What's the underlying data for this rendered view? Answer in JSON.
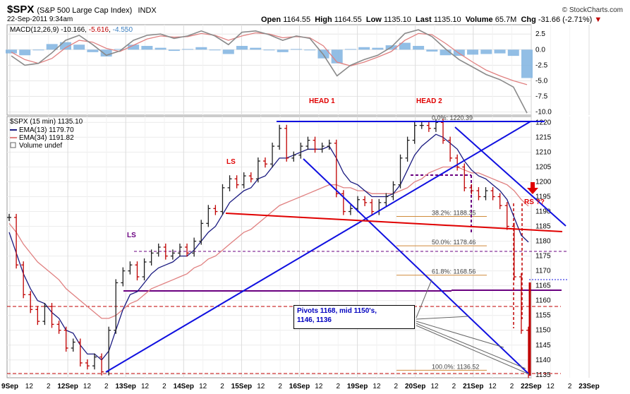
{
  "header": {
    "symbol": "$SPX",
    "name": "(S&P 500 Large Cap Index)",
    "exchange": "INDX",
    "timestamp": "22-Sep-2011 9:34am",
    "credit": "© StockCharts.com",
    "open_label": "Open",
    "open": "1164.55",
    "high_label": "High",
    "high": "1164.55",
    "low_label": "Low",
    "low": "1135.10",
    "last_label": "Last",
    "last": "1135.10",
    "volume_label": "Volume",
    "volume": "65.7M",
    "chg_label": "Chg",
    "chg": "-31.66 (-2.71%)",
    "chg_arrow": "▼"
  },
  "macd_legend": {
    "label": "MACD(12,26,9)",
    "v1": "-10.166",
    "v2": "-5.616",
    "v3": "-4.550"
  },
  "price_legend": {
    "series": "$SPX (15 min) 1135.10",
    "ema13": "EMA(13) 1179.70",
    "ema34": "EMA(34) 1191.82",
    "volume": "Volume undef"
  },
  "annotations": {
    "head1": "HEAD 1",
    "head2": "HEAD 2",
    "ls_red": "LS",
    "ls_purple": "LS",
    "rs": "RS ??",
    "pivots_line1": "Pivots 1168, mid 1150's,",
    "pivots_line2": "1146, 1136"
  },
  "fib_labels": [
    "0.0%: 1220.39",
    "38.2%: 1188.35",
    "50.0%: 1178.46",
    "61.8%: 1168.56",
    "100.0%: 1136.52"
  ],
  "colors": {
    "price_up": "#202020",
    "price_down": "#c00000",
    "ema13": "#1a1a80",
    "ema34": "#e08080",
    "trend_blue": "#1010e0",
    "neckline_red": "#e00000",
    "support_purple": "#6a0080",
    "macd_hist": "#7fb3e0"
  },
  "chart_data": [
    {
      "type": "line",
      "panel": "MACD",
      "y_ticks": [
        2.5,
        0.0,
        -2.5,
        -5.0,
        -7.5,
        -10.0
      ],
      "ylim": [
        -10.5,
        4
      ],
      "series": [
        {
          "name": "MACD(12,26,9)",
          "values": [
            -1,
            -2.5,
            -2.2,
            -0.5,
            1.5,
            2.3,
            0.8,
            -0.9,
            -0.2,
            1.5,
            2.3,
            2.5,
            1.8,
            2.2,
            3,
            2.2,
            0.8,
            2.8,
            3,
            2.4,
            1.5,
            2.2,
            1.8,
            -0.8,
            -4.2,
            -2.5,
            -1.6,
            -0.9,
            0.4,
            2.6,
            3.2,
            2.1,
            0.1,
            -1.6,
            -2.8,
            -4.0,
            -4.8,
            -6,
            -10.17
          ]
        },
        {
          "name": "Signal",
          "values": [
            -0.4,
            -1.6,
            -2.2,
            -1.4,
            0.3,
            1.5,
            1.2,
            0.2,
            -0.3,
            0.7,
            1.7,
            2.2,
            2,
            2.1,
            2.6,
            2.3,
            1.5,
            2.2,
            2.7,
            2.5,
            1.9,
            2.1,
            1.9,
            0.6,
            -2.0,
            -2.6,
            -2.0,
            -1.2,
            -0.3,
            1.5,
            2.6,
            2.4,
            1.0,
            -0.6,
            -2.0,
            -3.3,
            -4.2,
            -5.0,
            -5.62
          ]
        },
        {
          "name": "Histogram",
          "values": [
            -0.6,
            -0.9,
            0,
            0.9,
            1.2,
            0.8,
            -0.4,
            -1.1,
            0.1,
            0.8,
            0.6,
            0.3,
            -0.2,
            0.1,
            0.4,
            -0.1,
            -0.7,
            0.6,
            0.3,
            -0.1,
            -0.4,
            0.1,
            -0.1,
            -1.4,
            -2.2,
            0.1,
            0.4,
            0.3,
            0.7,
            1.1,
            0.6,
            -0.3,
            -0.9,
            -1.0,
            -0.8,
            -0.7,
            -0.6,
            -1.0,
            -4.55
          ]
        }
      ]
    },
    {
      "type": "line",
      "panel": "price",
      "y_ticks": [
        1135,
        1140,
        1145,
        1150,
        1155,
        1160,
        1165,
        1170,
        1175,
        1180,
        1185,
        1190,
        1195,
        1200,
        1205,
        1210,
        1215,
        1220
      ],
      "ylim": [
        1134,
        1222
      ],
      "x_labels": [
        "9Sep",
        "12",
        "2",
        "12Sep",
        "12",
        "2",
        "13Sep",
        "12",
        "2",
        "14Sep",
        "12",
        "2",
        "15Sep",
        "12",
        "2",
        "16Sep",
        "12",
        "2",
        "19Sep",
        "12",
        "2",
        "20Sep",
        "12",
        "2",
        "21Sep",
        "12",
        "2",
        "22Sep",
        "12",
        "2",
        "23Sep"
      ],
      "series": [
        {
          "name": "$SPX (15 min)",
          "values": [
            1188,
            1172,
            1162,
            1157,
            1153,
            1158,
            1152,
            1150,
            1144,
            1146,
            1139,
            1138,
            1141,
            1136,
            1150,
            1166,
            1170,
            1172,
            1168,
            1173,
            1176,
            1178,
            1175,
            1176,
            1178,
            1176,
            1180,
            1186,
            1191,
            1190,
            1198,
            1201,
            1199,
            1202,
            1201,
            1207,
            1206,
            1212,
            1218,
            1208,
            1209,
            1212,
            1214,
            1211,
            1212,
            1213,
            1196,
            1190,
            1191,
            1194,
            1193,
            1190,
            1193,
            1195,
            1199,
            1208,
            1214,
            1219,
            1219,
            1218,
            1220,
            1214,
            1208,
            1205,
            1198,
            1197,
            1195,
            1197,
            1195,
            1192,
            1185,
            1168,
            1150,
            1135.1
          ]
        },
        {
          "name": "EMA(13)",
          "values": [
            1183,
            1176,
            1169,
            1164,
            1160,
            1159,
            1156,
            1154,
            1150,
            1149,
            1145,
            1142,
            1142,
            1140,
            1143,
            1150,
            1157,
            1162,
            1163,
            1166,
            1169,
            1171,
            1172,
            1173,
            1175,
            1175,
            1177,
            1180,
            1183,
            1185,
            1189,
            1193,
            1195,
            1197,
            1198,
            1201,
            1202,
            1205,
            1208,
            1208,
            1209,
            1210,
            1211,
            1211,
            1211,
            1212,
            1208,
            1203,
            1200,
            1199,
            1197,
            1195,
            1195,
            1195,
            1196,
            1199,
            1204,
            1209,
            1212,
            1214,
            1216,
            1215,
            1213,
            1211,
            1207,
            1204,
            1202,
            1201,
            1199,
            1197,
            1194,
            1188,
            1182,
            1179.7
          ]
        },
        {
          "name": "EMA(34)",
          "values": [
            1186,
            1183,
            1179,
            1176,
            1173,
            1171,
            1169,
            1167,
            1164,
            1162,
            1160,
            1158,
            1156,
            1154,
            1154,
            1155,
            1157,
            1159,
            1160,
            1162,
            1164,
            1165,
            1166,
            1167,
            1168,
            1169,
            1171,
            1172,
            1174,
            1175,
            1177,
            1179,
            1181,
            1183,
            1184,
            1186,
            1188,
            1190,
            1192,
            1193,
            1194,
            1195,
            1196,
            1197,
            1198,
            1199,
            1199,
            1198,
            1198,
            1197,
            1197,
            1196,
            1196,
            1196,
            1196,
            1197,
            1198,
            1200,
            1201,
            1203,
            1204,
            1205,
            1205,
            1205,
            1204,
            1203,
            1203,
            1202,
            1201,
            1200,
            1199,
            1197,
            1194,
            1191.82
          ]
        }
      ]
    }
  ]
}
